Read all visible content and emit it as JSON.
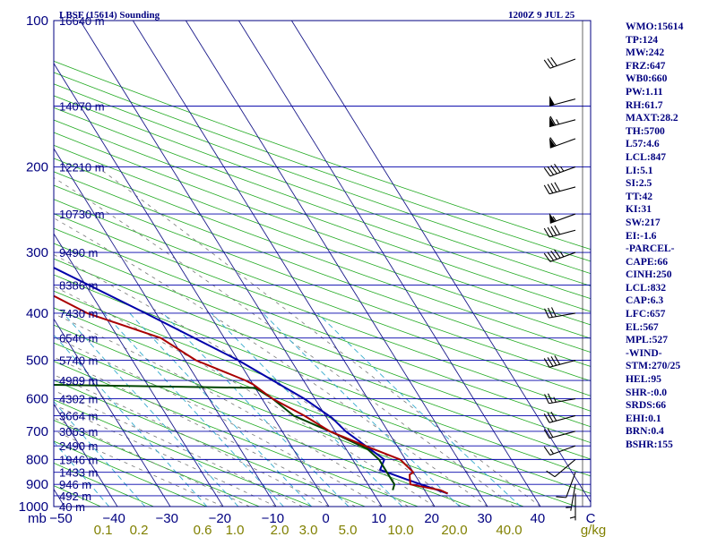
{
  "header": {
    "station": "LBSF (15614) Sounding",
    "time": "1200Z  9 JUL 25"
  },
  "indices": [
    "WMO:15614",
    "TP:124",
    "MW:242",
    "FRZ:647",
    "WB0:660",
    "PW:1.11",
    "RH:61.7",
    "MAXT:28.2",
    "TH:5700",
    "L57:4.6",
    "LCL:847",
    "LI:5.1",
    "SI:2.5",
    "TT:42",
    "KI:31",
    "SW:217",
    "EI:-1.6",
    "-PARCEL-",
    "CAPE:66",
    "CINH:250",
    "LCL:832",
    "CAP:6.3",
    "LFC:657",
    "EL:567",
    "MPL:527",
    "-WIND-",
    "STM:270/25",
    "HEL:95",
    "SHR-:0.0",
    "SRDS:66",
    "EHI:0.1",
    "BRN:0.4",
    "BSHR:155"
  ],
  "colors": {
    "isobar": "#0000aa",
    "isotherm": "#1a1a8a",
    "dry_adiabat": "#22aa22",
    "moist_adiabat": "#777777",
    "mixing_ratio": "#33aacc",
    "temperature": "#aa0000",
    "dewpoint": "#004400",
    "parcel": "#0000aa"
  },
  "chart_data": {
    "type": "skew-t",
    "xlabel": "mb",
    "pressure_ticks": [
      "100",
      "200",
      "300",
      "400",
      "500",
      "600",
      "700",
      "800",
      "900",
      "1000"
    ],
    "temperature_ticks": [
      "-50",
      "-40",
      "-30",
      "-20",
      "-10",
      "0",
      "10",
      "20",
      "30",
      "40",
      "C"
    ],
    "mixing_ratio_ticks": [
      "0.1",
      "0.2",
      "0.6",
      "1.0",
      "2.0",
      "3.0",
      "5.0",
      "10.0",
      "20.0",
      "40.0",
      "g/kg"
    ],
    "mixing_ratio_unit": "g/kg",
    "temperature_unit": "C",
    "isobars": [
      {
        "p": 100,
        "label": "16640 m"
      },
      {
        "p": 150,
        "label": "14070 m"
      },
      {
        "p": 200,
        "label": "12210 m"
      },
      {
        "p": 250,
        "label": "10730 m"
      },
      {
        "p": 300,
        "label": "9490 m"
      },
      {
        "p": 350,
        "label": "8386 m"
      },
      {
        "p": 400,
        "label": "7430 m"
      },
      {
        "p": 450,
        "label": "6540 m"
      },
      {
        "p": 500,
        "label": "5740 m"
      },
      {
        "p": 550,
        "label": "4989 m"
      },
      {
        "p": 600,
        "label": "4302 m"
      },
      {
        "p": 650,
        "label": "3664 m"
      },
      {
        "p": 700,
        "label": "3063 m"
      },
      {
        "p": 750,
        "label": "2490 m"
      },
      {
        "p": 800,
        "label": "1946 m"
      },
      {
        "p": 850,
        "label": "1433 m"
      },
      {
        "p": 900,
        "label": "946 m"
      },
      {
        "p": 950,
        "label": "492 m"
      },
      {
        "p": 1000,
        "label": "40 m"
      }
    ],
    "temperature": [
      [
        100,
        -57
      ],
      [
        112,
        -63
      ],
      [
        123,
        -63
      ],
      [
        138,
        -59
      ],
      [
        150,
        -55
      ],
      [
        200,
        -54
      ],
      [
        225,
        -56
      ],
      [
        240,
        -53
      ],
      [
        300,
        -41
      ],
      [
        350,
        -30
      ],
      [
        400,
        -23
      ],
      [
        450,
        -12
      ],
      [
        500,
        -8
      ],
      [
        550,
        -1
      ],
      [
        560,
        0
      ],
      [
        600,
        2
      ],
      [
        650,
        6
      ],
      [
        700,
        9
      ],
      [
        750,
        14
      ],
      [
        800,
        19
      ],
      [
        850,
        20
      ],
      [
        860,
        19
      ],
      [
        900,
        18
      ],
      [
        925,
        23
      ],
      [
        940,
        24
      ]
    ],
    "dewpoint": [
      [
        100,
        -55
      ],
      [
        112,
        -60
      ],
      [
        130,
        -65
      ],
      [
        150,
        -66
      ],
      [
        200,
        -60
      ],
      [
        230,
        -53
      ],
      [
        265,
        -43
      ],
      [
        280,
        -44
      ],
      [
        300,
        -47
      ],
      [
        390,
        -44
      ],
      [
        400,
        -44
      ],
      [
        450,
        -46
      ],
      [
        505,
        -44
      ],
      [
        560,
        -45
      ],
      [
        570,
        0
      ],
      [
        600,
        2
      ],
      [
        650,
        4
      ],
      [
        700,
        9
      ],
      [
        760,
        14
      ],
      [
        800,
        15
      ],
      [
        850,
        15
      ],
      [
        900,
        15
      ],
      [
        925,
        14
      ]
    ],
    "parcel": [
      [
        940,
        24
      ],
      [
        880,
        18
      ],
      [
        840,
        14
      ],
      [
        800,
        16
      ],
      [
        700,
        12
      ],
      [
        657,
        11
      ],
      [
        600,
        8
      ],
      [
        500,
        0
      ],
      [
        400,
        -12
      ],
      [
        300,
        -28
      ],
      [
        250,
        -39
      ],
      [
        200,
        -50
      ],
      [
        150,
        -62
      ],
      [
        130,
        -67
      ]
    ],
    "winds": [
      {
        "p": 120,
        "dir": 250,
        "spd": 30
      },
      {
        "p": 145,
        "dir": 255,
        "spd": 50
      },
      {
        "p": 160,
        "dir": 255,
        "spd": 65
      },
      {
        "p": 175,
        "dir": 250,
        "spd": 60
      },
      {
        "p": 200,
        "dir": 250,
        "spd": 45
      },
      {
        "p": 220,
        "dir": 255,
        "spd": 40
      },
      {
        "p": 250,
        "dir": 250,
        "spd": 55
      },
      {
        "p": 270,
        "dir": 255,
        "spd": 40
      },
      {
        "p": 300,
        "dir": 250,
        "spd": 45
      },
      {
        "p": 400,
        "dir": 260,
        "spd": 30
      },
      {
        "p": 500,
        "dir": 255,
        "spd": 40
      },
      {
        "p": 600,
        "dir": 260,
        "spd": 25
      },
      {
        "p": 650,
        "dir": 255,
        "spd": 30
      },
      {
        "p": 700,
        "dir": 255,
        "spd": 20
      },
      {
        "p": 750,
        "dir": 250,
        "spd": 15
      },
      {
        "p": 800,
        "dir": 230,
        "spd": 10
      },
      {
        "p": 850,
        "dir": 200,
        "spd": 10
      },
      {
        "p": 900,
        "dir": 190,
        "spd": 5
      },
      {
        "p": 940,
        "dir": 180,
        "spd": 5
      }
    ]
  }
}
